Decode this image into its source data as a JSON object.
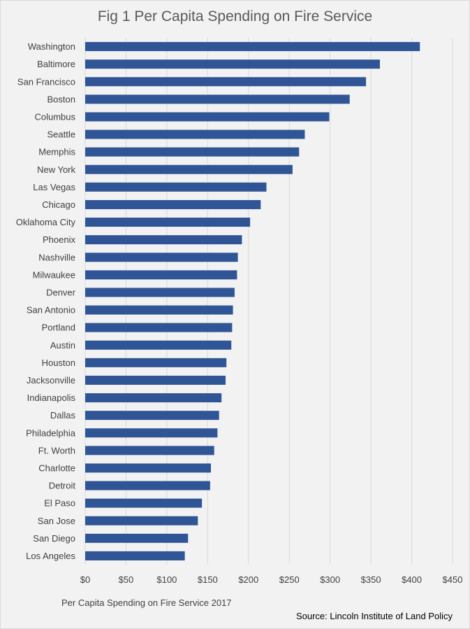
{
  "chart_data": {
    "type": "bar",
    "orientation": "horizontal",
    "title": "Fig 1 Per Capita Spending on Fire Service",
    "series_label": "Per Capita Spending on Fire Service 2017",
    "source": "Source: Lincoln Institute of Land Policy",
    "bar_color": "#2f5597",
    "grid": true,
    "xlim": [
      0,
      450
    ],
    "x_ticks": [
      0,
      50,
      100,
      150,
      200,
      250,
      300,
      350,
      400,
      450
    ],
    "x_tick_labels": [
      "$0",
      "$50",
      "$100",
      "$150",
      "$200",
      "$250",
      "$300",
      "$350",
      "$400",
      "$450"
    ],
    "categories": [
      "Washington",
      "Baltimore",
      "San Francisco",
      "Boston",
      "Columbus",
      "Seattle",
      "Memphis",
      "New York",
      "Las Vegas",
      "Chicago",
      "Oklahoma City",
      "Phoenix",
      "Nashville",
      "Milwaukee",
      "Denver",
      "San Antonio",
      "Portland",
      "Austin",
      "Houston",
      "Jacksonville",
      "Indianapolis",
      "Dallas",
      "Philadelphia",
      "Ft. Worth",
      "Charlotte",
      "Detroit",
      "El Paso",
      "San Jose",
      "San Diego",
      "Los Angeles"
    ],
    "values": [
      410,
      361,
      344,
      324,
      299,
      269,
      262,
      254,
      222,
      215,
      202,
      192,
      187,
      186,
      183,
      181,
      180,
      179,
      173,
      172,
      167,
      164,
      162,
      158,
      154,
      153,
      143,
      138,
      126,
      122
    ]
  }
}
